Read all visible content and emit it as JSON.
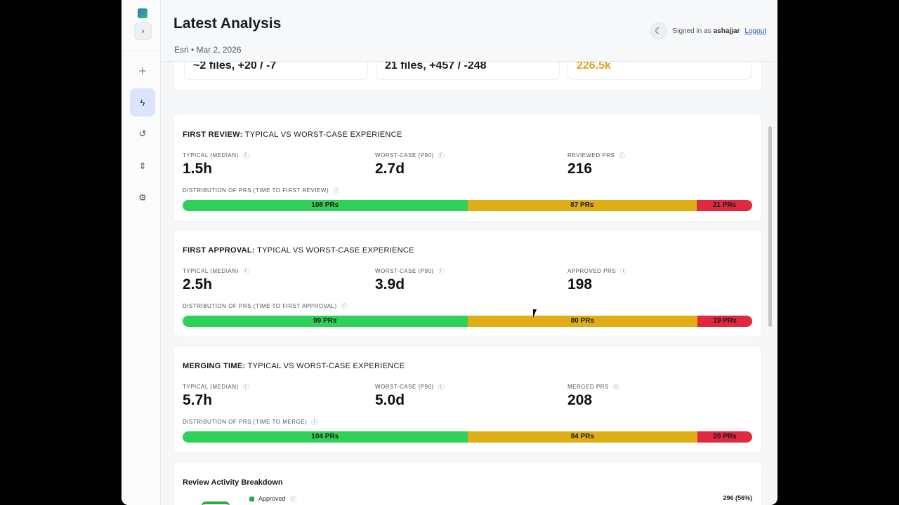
{
  "header": {
    "title": "Latest Analysis",
    "subtitle": "Esri • Mar 2, 2026",
    "signed_in_prefix": "Signed in as",
    "username": "ashajjar",
    "logout": "Logout"
  },
  "sidebar": {
    "items": [
      {
        "icon": "plus-icon"
      },
      {
        "icon": "lightning-icon",
        "active": true
      },
      {
        "icon": "history-icon"
      },
      {
        "icon": "compare-icon"
      },
      {
        "icon": "gear-icon"
      }
    ]
  },
  "top_cards": [
    "~2 files, +20 / -7",
    "21 files, +457 / -248",
    "226.5k"
  ],
  "top_card_accent": "#e2a21c",
  "panels": [
    {
      "title_bold": "FIRST REVIEW:",
      "title_rest": "TYPICAL VS WORST-CASE EXPERIENCE",
      "typical_label": "TYPICAL (MEDIAN)",
      "typical": "1.5h",
      "worst_label": "WORST-CASE (P90)",
      "worst": "2.7d",
      "count_label": "REVIEWED PRS",
      "count": "216",
      "dist_label": "DISTRIBUTION OF PRS (TIME TO FIRST REVIEW)",
      "segments": [
        {
          "label": "108 PRs",
          "value": 108
        },
        {
          "label": "87 PRs",
          "value": 87
        },
        {
          "label": "21 PRs",
          "value": 21
        }
      ]
    },
    {
      "title_bold": "FIRST APPROVAL:",
      "title_rest": "TYPICAL VS WORST-CASE EXPERIENCE",
      "typical_label": "TYPICAL (MEDIAN)",
      "typical": "2.5h",
      "worst_label": "WORST-CASE (P90)",
      "worst": "3.9d",
      "count_label": "APPROVED PRS",
      "count": "198",
      "dist_label": "DISTRIBUTION OF PRS (TIME TO FIRST APPROVAL)",
      "segments": [
        {
          "label": "99 PRs",
          "value": 99
        },
        {
          "label": "80 PRs",
          "value": 80
        },
        {
          "label": "19 PRs",
          "value": 19
        }
      ]
    },
    {
      "title_bold": "MERGING TIME:",
      "title_rest": "TYPICAL VS WORST-CASE EXPERIENCE",
      "typical_label": "TYPICAL (MEDIAN)",
      "typical": "5.7h",
      "worst_label": "WORST-CASE (P90)",
      "worst": "5.0d",
      "count_label": "MERGED PRS",
      "count": "208",
      "dist_label": "DISTRIBUTION OF PRS (TIME TO MERGE)",
      "segments": [
        {
          "label": "104 PRs",
          "value": 104
        },
        {
          "label": "84 PRs",
          "value": 84
        },
        {
          "label": "20 PRs",
          "value": 20
        }
      ]
    }
  ],
  "segment_colors": [
    "#2fd158",
    "#dfae14",
    "#e0283e"
  ],
  "review_activity": {
    "title": "Review Activity Breakdown",
    "legend": [
      {
        "label": "Approved",
        "value": "296 (56%)",
        "color": "#2aa84a"
      }
    ]
  }
}
